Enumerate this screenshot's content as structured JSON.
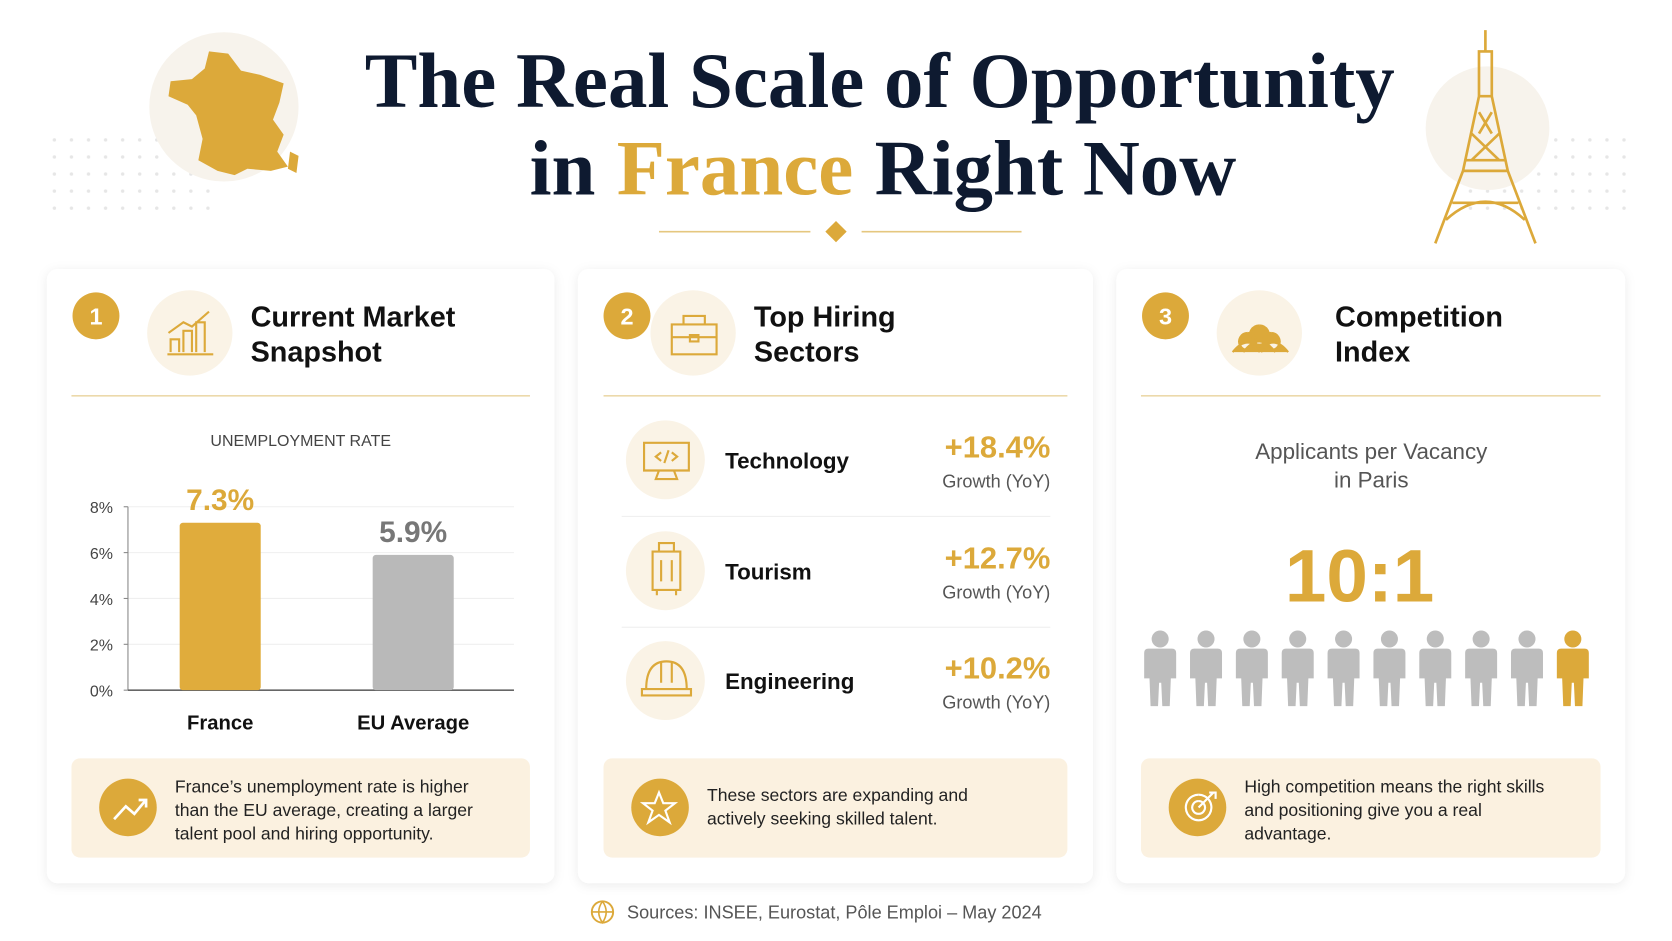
{
  "header": {
    "title_line1": "The Real Scale of Opportunity",
    "title_line2": [
      "in",
      "France",
      "Right Now"
    ]
  },
  "cards": [
    {
      "number": "1",
      "title": [
        "Current Market",
        "Snapshot"
      ],
      "note": [
        "France’s unemployment rate is higher",
        "than the EU average, creating a larger",
        "talent pool and hiring opportunity."
      ]
    },
    {
      "number": "2",
      "title": [
        "Top Hiring",
        "Sectors"
      ],
      "note": [
        "These sectors are expanding and",
        "actively seeking skilled talent."
      ]
    },
    {
      "number": "3",
      "title": [
        "Competition",
        "Index"
      ],
      "note": [
        "High competition means the right skills",
        "and positioning give you a real",
        "advantage."
      ]
    }
  ],
  "chart_data": {
    "type": "bar",
    "subtitle": "UNEMPLOYMENT RATE",
    "categories": [
      "France",
      "EU Average"
    ],
    "values": [
      7.3,
      5.9
    ],
    "value_labels": [
      "7.3%",
      "5.9%"
    ],
    "colors": [
      "#e0ac3c",
      "#b9b9b9"
    ],
    "ylim": [
      0,
      8
    ],
    "yticks": [
      {
        "value": 0,
        "label": "0%"
      },
      {
        "value": 2,
        "label": "2%"
      },
      {
        "value": 4,
        "label": "4%"
      },
      {
        "value": 6,
        "label": "6%"
      },
      {
        "value": 8,
        "label": "8%"
      }
    ],
    "grid": true
  },
  "sectors": [
    {
      "name": "Technology",
      "growth": "+18.4%",
      "note": "Growth (YoY)"
    },
    {
      "name": "Tourism",
      "growth": "+12.7%",
      "note": "Growth (YoY)"
    },
    {
      "name": "Engineering",
      "growth": "+10.2%",
      "note": "Growth (YoY)"
    }
  ],
  "competition": {
    "subtitle": [
      "Applicants per Vacancy",
      "in Paris"
    ],
    "ratio": "10:1"
  },
  "sources": "Sources: INSEE, Eurostat, Pôle Emploi – May 2024"
}
